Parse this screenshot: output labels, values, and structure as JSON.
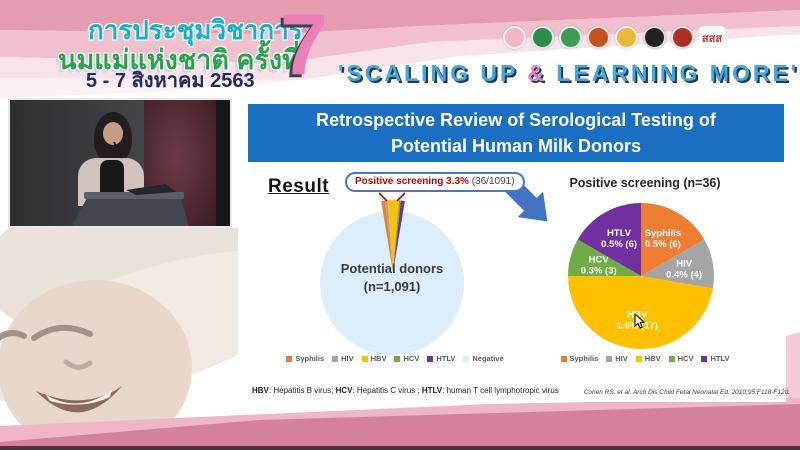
{
  "header": {
    "title_line1": "การประชุมวิชาการ",
    "title_line2": "นมแม่แห่งชาติ ครั้งที่",
    "date_line": "5 - 7 สิงหาคม 2563",
    "edition_number": "7",
    "tagline_pre": "'SCALING UP ",
    "tagline_amp": "&",
    "tagline_post": " LEARNING MORE'",
    "logos": [
      {
        "name": "mother-child-foundation-logo",
        "color": "#f2b7c6"
      },
      {
        "name": "ministry-of-public-health-logo",
        "color": "#2e8b4a"
      },
      {
        "name": "department-of-health-logo",
        "color": "#3a9c55"
      },
      {
        "name": "university-crest-red-logo",
        "color": "#c2521f"
      },
      {
        "name": "royal-college-crest-logo",
        "color": "#e8b93c"
      },
      {
        "name": "pediatric-society-emblem-logo",
        "color": "#222222"
      },
      {
        "name": "medical-association-emblem-logo",
        "color": "#a93226"
      },
      {
        "name": "thai-health-promotion-logo",
        "color": "#ffffff",
        "text": "สสส"
      }
    ]
  },
  "slide": {
    "title": "Retrospective Review of Serological Testing of Potential Human Milk Donors",
    "result_label": "Result",
    "callout": {
      "highlight": "Positive screening 3.3%",
      "detail": " (36/1091)"
    },
    "footnote": {
      "abbr1": "HBV",
      "def1": ": Hepatitis B virus; ",
      "abbr2": "HCV",
      "def2": ": Hepatitis C virus ; ",
      "abbr3": "HTLV",
      "def3": ": human T cell lymphotropic virus"
    },
    "citation": "Cohen RS, et al. Arch Dis Child Fetal Neonatal Ed. 2010;95:F118-F120."
  },
  "chart_data": [
    {
      "type": "pie",
      "name": "potential-donors-pie",
      "title": "Potential donors",
      "subtitle": "(n=1,091)",
      "n": 1091,
      "annotation": "Positive screening 3.3% (36/1091)",
      "slices": [
        {
          "label": "Syphilis",
          "value": 6,
          "color": "#ed7d31"
        },
        {
          "label": "HIV",
          "value": 4,
          "color": "#a5a5a5"
        },
        {
          "label": "HBV",
          "value": 17,
          "color": "#ffc000"
        },
        {
          "label": "HCV",
          "value": 3,
          "color": "#70ad47"
        },
        {
          "label": "HTLV",
          "value": 6,
          "color": "#7030a0"
        },
        {
          "label": "Negative",
          "value": 1055,
          "color": "#dceefa"
        }
      ],
      "legend": [
        "Syphilis",
        "HIV",
        "HBV",
        "HCV",
        "HTLV",
        "Negative"
      ]
    },
    {
      "type": "pie",
      "name": "positive-screening-pie",
      "title": "Positive screening (n=36)",
      "n": 36,
      "slices": [
        {
          "label": "Syphilis",
          "pct": "0.5%",
          "count": 6,
          "color": "#ed7d31"
        },
        {
          "label": "HIV",
          "pct": "0.4%",
          "count": 4,
          "color": "#a5a5a5"
        },
        {
          "label": "HBV",
          "pct": "1.6%",
          "count": 17,
          "color": "#ffc000"
        },
        {
          "label": "HCV",
          "pct": "0.3%",
          "count": 3,
          "color": "#70ad47"
        },
        {
          "label": "HTLV",
          "pct": "0.5%",
          "count": 6,
          "color": "#7030a0"
        }
      ],
      "legend": [
        "Syphilis",
        "HIV",
        "HBV",
        "HCV",
        "HTLV"
      ]
    }
  ]
}
